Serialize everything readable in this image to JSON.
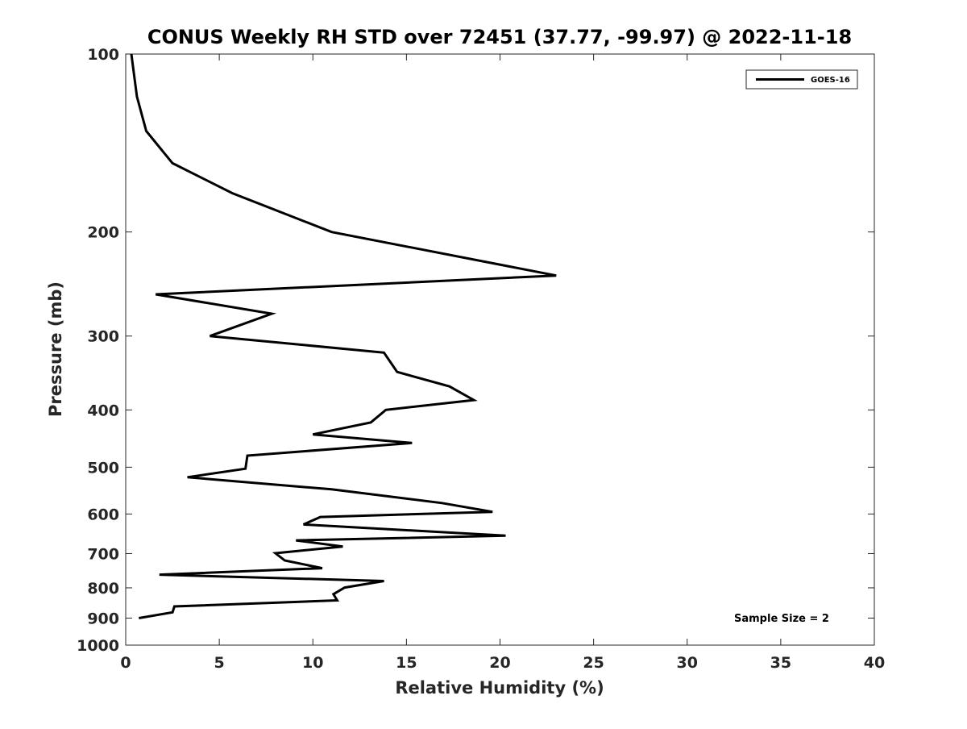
{
  "chart_data": {
    "type": "line",
    "title": "CONUS Weekly RH STD over 72451 (37.77, -99.97) @ 2022-11-18",
    "xlabel": "Relative Humidity (%)",
    "ylabel": "Pressure (mb)",
    "xlim": [
      0,
      40
    ],
    "ylim": [
      100,
      1000
    ],
    "yscale": "log",
    "y_reversed": true,
    "grid": false,
    "legend_position": "top-right",
    "xticks": [
      0,
      5,
      10,
      15,
      20,
      25,
      30,
      35,
      40
    ],
    "yticks": [
      100,
      200,
      300,
      400,
      500,
      600,
      700,
      800,
      900,
      1000
    ],
    "annotation": "Sample Size = 2",
    "series": [
      {
        "name": "GOES-16",
        "color": "#000000",
        "points": [
          [
            0.3,
            100
          ],
          [
            0.6,
            118
          ],
          [
            1.1,
            135
          ],
          [
            2.5,
            153
          ],
          [
            5.7,
            172
          ],
          [
            11.0,
            200
          ],
          [
            23.0,
            237
          ],
          [
            1.6,
            255
          ],
          [
            7.8,
            275
          ],
          [
            4.5,
            300
          ],
          [
            13.8,
            320
          ],
          [
            14.5,
            345
          ],
          [
            17.3,
            365
          ],
          [
            18.6,
            385
          ],
          [
            13.9,
            400
          ],
          [
            13.1,
            420
          ],
          [
            10.0,
            440
          ],
          [
            15.3,
            455
          ],
          [
            6.5,
            478
          ],
          [
            6.4,
            503
          ],
          [
            3.3,
            520
          ],
          [
            11.0,
            545
          ],
          [
            16.9,
            575
          ],
          [
            19.6,
            595
          ],
          [
            10.4,
            607
          ],
          [
            9.5,
            625
          ],
          [
            20.3,
            653
          ],
          [
            9.1,
            665
          ],
          [
            11.6,
            681
          ],
          [
            8.0,
            699
          ],
          [
            8.5,
            719
          ],
          [
            10.5,
            741
          ],
          [
            1.8,
            760
          ],
          [
            13.8,
            779
          ],
          [
            11.7,
            799
          ],
          [
            11.1,
            820
          ],
          [
            11.3,
            840
          ],
          [
            2.6,
            860
          ],
          [
            2.5,
            880
          ],
          [
            0.7,
            900
          ]
        ]
      }
    ]
  }
}
